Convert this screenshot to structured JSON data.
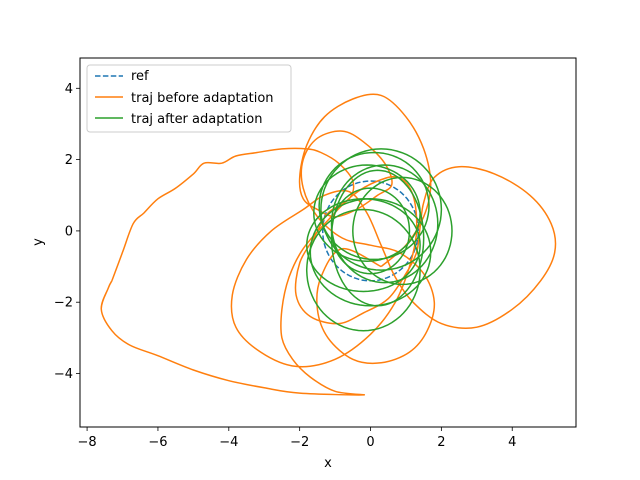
{
  "chart_data": {
    "type": "line",
    "title": "",
    "xlabel": "x",
    "ylabel": "y",
    "xlim": [
      -8.2,
      5.8
    ],
    "ylim": [
      -5.5,
      4.85
    ],
    "xticks": [
      -8,
      -6,
      -4,
      -2,
      0,
      2,
      4
    ],
    "yticks": [
      -4,
      -2,
      0,
      2,
      4
    ],
    "xtick_labels": [
      "−8",
      "−6",
      "−4",
      "−2",
      "0",
      "2",
      "4"
    ],
    "ytick_labels": [
      "−4",
      "−2",
      "0",
      "2",
      "4"
    ],
    "grid": false,
    "legend_position": "top-left",
    "series": [
      {
        "name": "ref",
        "color": "#1f77b4",
        "dash": "dashed",
        "loops": [
          {
            "cx": 0.0,
            "cy": 0.0,
            "rx": 1.35,
            "ry": 1.4,
            "rot": 0
          }
        ]
      },
      {
        "name": "traj before adaptation",
        "color": "#ff7f0e",
        "dash": "solid",
        "paths": [
          [
            [
              -7.3,
              -1.4
            ],
            [
              -7.0,
              -0.6
            ],
            [
              -6.7,
              0.2
            ],
            [
              -6.4,
              0.5
            ],
            [
              -6.0,
              0.9
            ],
            [
              -5.5,
              1.2
            ],
            [
              -5.0,
              1.6
            ],
            [
              -4.7,
              1.9
            ],
            [
              -4.2,
              1.9
            ],
            [
              -3.8,
              2.1
            ],
            [
              -3.2,
              2.2
            ],
            [
              -2.5,
              2.3
            ],
            [
              -1.8,
              2.3
            ],
            [
              -1.4,
              2.2
            ],
            [
              -0.9,
              1.9
            ],
            [
              -0.5,
              1.4
            ],
            [
              -0.6,
              0.9
            ],
            [
              -1.2,
              0.5
            ],
            [
              -1.6,
              -0.2
            ],
            [
              -2.0,
              -0.9
            ],
            [
              -2.1,
              -1.8
            ],
            [
              -1.7,
              -2.4
            ],
            [
              -0.9,
              -2.6
            ],
            [
              -0.2,
              -2.3
            ],
            [
              0.5,
              -1.9
            ],
            [
              1.0,
              -1.2
            ],
            [
              1.3,
              -0.6
            ],
            [
              1.4,
              0.1
            ],
            [
              1.5,
              0.8
            ],
            [
              1.8,
              1.5
            ],
            [
              2.5,
              1.8
            ],
            [
              3.5,
              1.6
            ],
            [
              4.5,
              1.0
            ],
            [
              5.1,
              0.2
            ],
            [
              5.2,
              -0.6
            ],
            [
              4.8,
              -1.4
            ],
            [
              4.0,
              -2.2
            ],
            [
              3.0,
              -2.7
            ],
            [
              2.0,
              -2.6
            ],
            [
              1.2,
              -2.0
            ],
            [
              0.7,
              -1.3
            ],
            [
              0.3,
              -0.4
            ],
            [
              -0.1,
              0.5
            ],
            [
              -0.6,
              1.1
            ],
            [
              -1.3,
              1.0
            ],
            [
              -1.9,
              0.6
            ],
            [
              -2.8,
              0.0
            ],
            [
              -3.5,
              -0.8
            ],
            [
              -3.9,
              -1.8
            ],
            [
              -3.8,
              -2.7
            ],
            [
              -3.1,
              -3.4
            ],
            [
              -2.1,
              -3.8
            ],
            [
              -1.0,
              -3.6
            ],
            [
              0.0,
              -2.9
            ],
            [
              0.7,
              -2.0
            ],
            [
              1.1,
              -1.0
            ],
            [
              1.3,
              0.0
            ],
            [
              1.2,
              1.0
            ],
            [
              0.8,
              1.5
            ],
            [
              0.2,
              1.4
            ],
            [
              -0.5,
              1.0
            ],
            [
              -1.2,
              0.3
            ],
            [
              -1.9,
              -0.5
            ],
            [
              -2.3,
              -1.3
            ],
            [
              -2.5,
              -2.2
            ],
            [
              -2.5,
              -3.0
            ],
            [
              -2.2,
              -3.6
            ],
            [
              -1.7,
              -4.1
            ],
            [
              -1.0,
              -4.5
            ],
            [
              -0.2,
              -4.6
            ],
            [
              -2.0,
              -4.55
            ],
            [
              -3.0,
              -4.4
            ],
            [
              -4.0,
              -4.2
            ],
            [
              -5.0,
              -3.9
            ],
            [
              -6.0,
              -3.5
            ],
            [
              -6.8,
              -3.2
            ],
            [
              -7.3,
              -2.8
            ],
            [
              -7.6,
              -2.2
            ],
            [
              -7.4,
              -1.6
            ],
            [
              -7.3,
              -1.4
            ]
          ],
          [
            [
              0.3,
              -1.0
            ],
            [
              1.0,
              -0.4
            ],
            [
              1.5,
              0.4
            ],
            [
              1.7,
              1.3
            ],
            [
              1.5,
              2.3
            ],
            [
              1.0,
              3.2
            ],
            [
              0.3,
              3.8
            ],
            [
              -0.5,
              3.7
            ],
            [
              -1.3,
              3.2
            ],
            [
              -1.8,
              2.4
            ],
            [
              -2.0,
              1.5
            ],
            [
              -1.9,
              0.9
            ],
            [
              -1.5,
              0.6
            ],
            [
              -1.0,
              0.4
            ],
            [
              -0.4,
              0.6
            ],
            [
              0.2,
              1.0
            ],
            [
              0.6,
              1.3
            ],
            [
              0.4,
              1.9
            ],
            [
              -0.2,
              2.5
            ],
            [
              -0.8,
              2.8
            ],
            [
              -1.5,
              2.6
            ],
            [
              -1.9,
              2.0
            ],
            [
              -1.9,
              1.2
            ],
            [
              -1.5,
              0.4
            ],
            [
              -0.8,
              -0.2
            ],
            [
              0.0,
              -0.4
            ],
            [
              0.8,
              -0.6
            ],
            [
              1.5,
              -1.2
            ],
            [
              1.8,
              -2.0
            ],
            [
              1.6,
              -2.8
            ],
            [
              1.1,
              -3.4
            ],
            [
              0.3,
              -3.7
            ],
            [
              -0.5,
              -3.6
            ],
            [
              -1.2,
              -3.0
            ],
            [
              -1.5,
              -2.2
            ],
            [
              -1.4,
              -1.3
            ],
            [
              -0.8,
              -0.5
            ],
            [
              0.3,
              -1.0
            ]
          ]
        ]
      },
      {
        "name": "traj after adaptation",
        "color": "#2ca02c",
        "dash": "solid",
        "loops": [
          {
            "cx": 0.3,
            "cy": 0.6,
            "rx": 1.7,
            "ry": 1.7,
            "rot": 0
          },
          {
            "cx": 0.1,
            "cy": 0.7,
            "rx": 1.55,
            "ry": 1.5,
            "rot": 0
          },
          {
            "cx": -0.1,
            "cy": 0.5,
            "rx": 1.5,
            "ry": 1.35,
            "rot": 0
          },
          {
            "cx": 0.4,
            "cy": 0.2,
            "rx": 1.5,
            "ry": 1.65,
            "rot": 0
          },
          {
            "cx": 0.9,
            "cy": 0.0,
            "rx": 1.4,
            "ry": 1.5,
            "rot": 0
          },
          {
            "cx": -0.2,
            "cy": -0.4,
            "rx": 1.6,
            "ry": 1.3,
            "rot": 0
          },
          {
            "cx": 0.0,
            "cy": -0.6,
            "rx": 1.7,
            "ry": 1.5,
            "rot": 0
          },
          {
            "cx": -0.2,
            "cy": -1.1,
            "rx": 1.6,
            "ry": 1.7,
            "rot": 0
          },
          {
            "cx": 0.2,
            "cy": -0.2,
            "rx": 1.3,
            "ry": 1.9,
            "rot": 0
          },
          {
            "cx": 0.0,
            "cy": 0.0,
            "rx": 1.1,
            "ry": 1.2,
            "rot": 0
          }
        ]
      }
    ]
  }
}
